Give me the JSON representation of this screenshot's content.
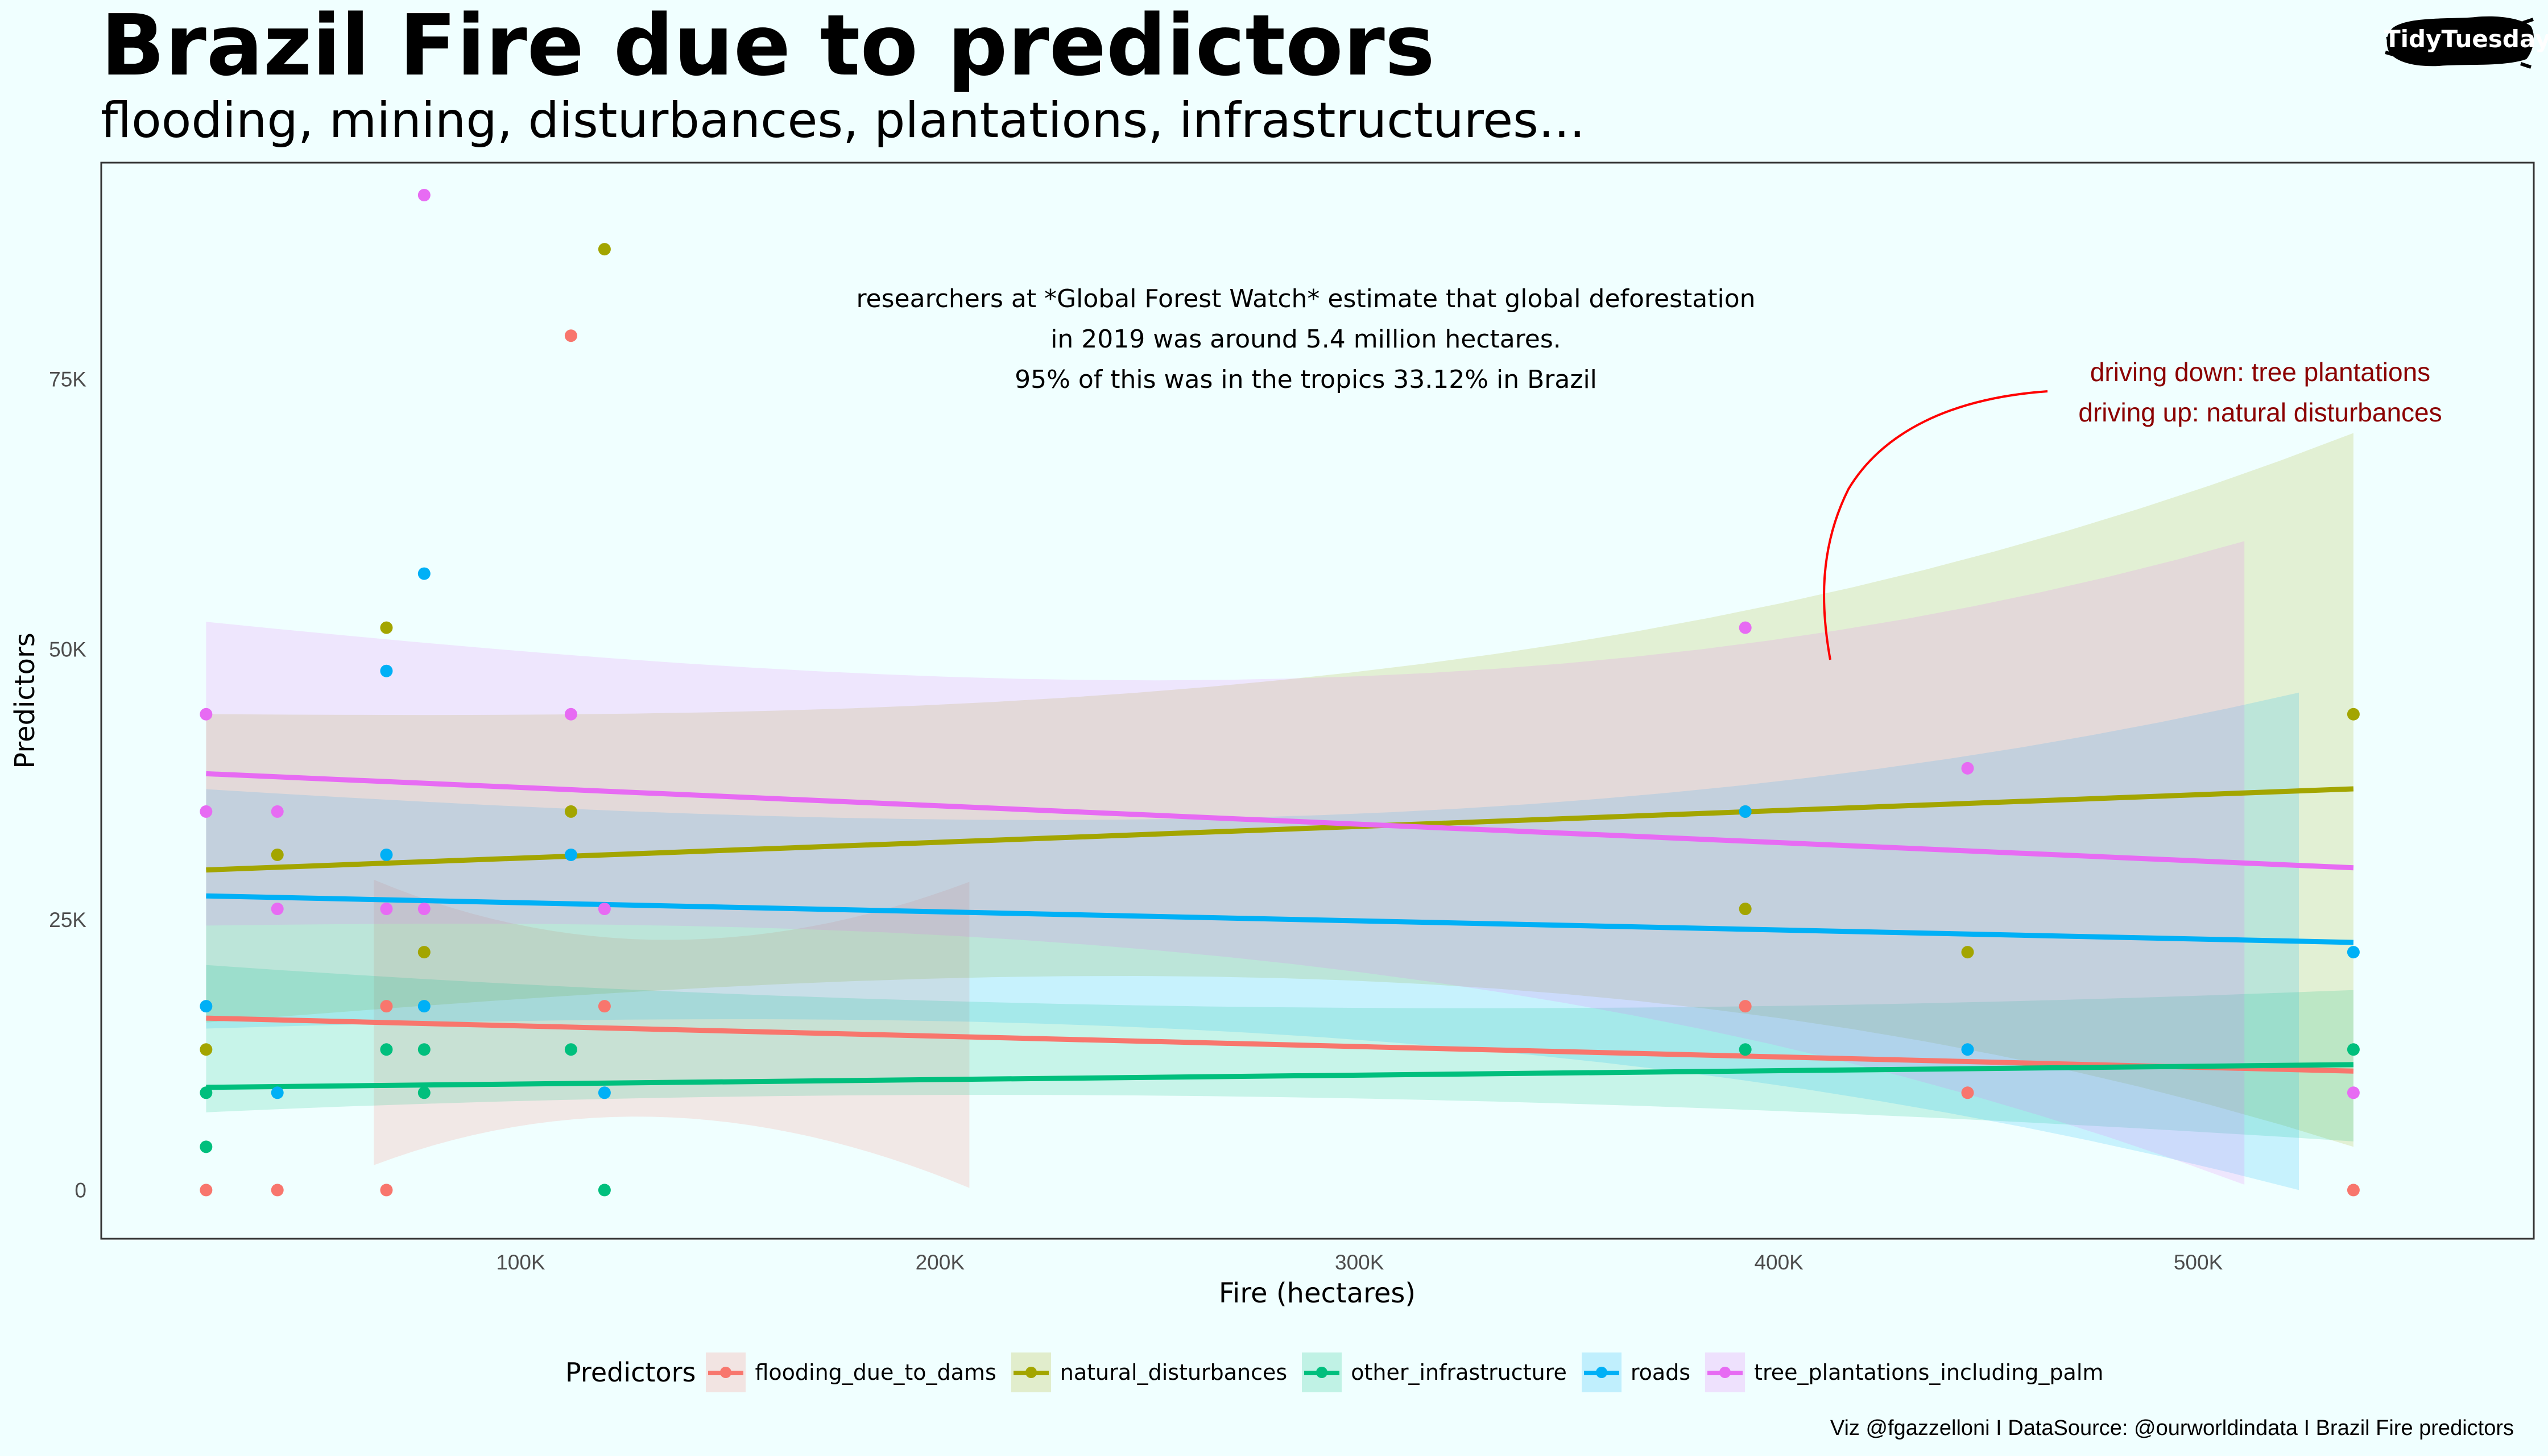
{
  "header": {
    "title": "Brazil Fire due to predictors",
    "subtitle": "flooding, mining, disturbances, plantations, infrastructures...",
    "badge": "TidyTuesday"
  },
  "caption": "Viz @fgazzelloni I DataSource: @ourworldindata I Brazil Fire predictors",
  "legend": {
    "title": "Predictors",
    "items": [
      {
        "label": "flooding_due_to_dams",
        "color": "#F8766D"
      },
      {
        "label": "natural_disturbances",
        "color": "#A3A500"
      },
      {
        "label": "other_infrastructure",
        "color": "#00BF7D"
      },
      {
        "label": "roads",
        "color": "#00B0F6"
      },
      {
        "label": "tree_plantations_including_palm",
        "color": "#E76BF3"
      }
    ]
  },
  "chart_data": {
    "type": "scatter",
    "title": "Brazil Fire due to predictors",
    "xlabel": "Fire (hectares)",
    "ylabel": "Predictors",
    "xlim": [
      0,
      580000
    ],
    "ylim": [
      -4500,
      95000
    ],
    "x_ticks": [
      100000,
      200000,
      300000,
      400000,
      500000
    ],
    "x_tick_labels": [
      "100K",
      "200K",
      "300K",
      "400K",
      "500K"
    ],
    "y_ticks": [
      0,
      25000,
      50000,
      75000
    ],
    "y_tick_labels": [
      "0",
      "25K",
      "50K",
      "75K"
    ],
    "annotation_main": [
      "researchers at *Global Forest Watch* estimate that global deforestation",
      "in 2019 was around 5.4 million hectares.",
      "95% of this was in the tropics 33.12% in Brazil"
    ],
    "annotation_side": [
      "driving down: tree plantations",
      "driving up: natural disturbances"
    ],
    "series": [
      {
        "name": "flooding_due_to_dams",
        "color": "#F8766D",
        "points": [
          [
            25000,
            0
          ],
          [
            42000,
            0
          ],
          [
            68000,
            0
          ],
          [
            68000,
            17000
          ],
          [
            112000,
            79000
          ],
          [
            120000,
            17000
          ],
          [
            392000,
            17000
          ],
          [
            445000,
            9000
          ],
          [
            537000,
            0
          ]
        ],
        "trend": [
          [
            25000,
            15900
          ],
          [
            537000,
            11000
          ]
        ],
        "band": {
          "x": [
            65000,
            207000
          ],
          "upper": [
            31000,
            28500
          ],
          "lower": [
            0,
            200
          ]
        }
      },
      {
        "name": "natural_disturbances",
        "color": "#A3A500",
        "points": [
          [
            25000,
            13000
          ],
          [
            42000,
            31000
          ],
          [
            68000,
            52000
          ],
          [
            77000,
            22000
          ],
          [
            112000,
            35000
          ],
          [
            120000,
            87000
          ],
          [
            392000,
            26000
          ],
          [
            392000,
            35000
          ],
          [
            445000,
            22000
          ],
          [
            537000,
            44000
          ]
        ],
        "trend": [
          [
            25000,
            29600
          ],
          [
            537000,
            37100
          ]
        ],
        "band": {
          "x": [
            25000,
            537000
          ],
          "upper": [
            46500,
            70000
          ],
          "lower": [
            13000,
            4000
          ]
        }
      },
      {
        "name": "other_infrastructure",
        "color": "#00BF7D",
        "points": [
          [
            25000,
            4000
          ],
          [
            25000,
            9000
          ],
          [
            68000,
            13000
          ],
          [
            77000,
            9000
          ],
          [
            77000,
            13000
          ],
          [
            112000,
            13000
          ],
          [
            120000,
            0
          ],
          [
            392000,
            13000
          ],
          [
            537000,
            13000
          ]
        ],
        "trend": [
          [
            25000,
            9500
          ],
          [
            537000,
            11600
          ]
        ],
        "band": {
          "x": [
            25000,
            537000
          ],
          "upper": [
            22000,
            18500
          ],
          "lower": [
            6000,
            4500
          ]
        }
      },
      {
        "name": "roads",
        "color": "#00B0F6",
        "points": [
          [
            25000,
            17000
          ],
          [
            42000,
            9000
          ],
          [
            68000,
            31000
          ],
          [
            68000,
            48000
          ],
          [
            77000,
            17000
          ],
          [
            77000,
            57000
          ],
          [
            112000,
            31000
          ],
          [
            120000,
            9000
          ],
          [
            392000,
            35000
          ],
          [
            445000,
            13000
          ],
          [
            537000,
            22000
          ]
        ],
        "trend": [
          [
            25000,
            27200
          ],
          [
            537000,
            22900
          ]
        ],
        "band": {
          "x": [
            25000,
            524000
          ],
          "upper": [
            39000,
            46000
          ],
          "lower": [
            13000,
            0
          ]
        }
      },
      {
        "name": "tree_plantations_including_palm",
        "color": "#E76BF3",
        "points": [
          [
            25000,
            35000
          ],
          [
            25000,
            44000
          ],
          [
            42000,
            26000
          ],
          [
            42000,
            35000
          ],
          [
            68000,
            26000
          ],
          [
            77000,
            26000
          ],
          [
            77000,
            92000
          ],
          [
            112000,
            44000
          ],
          [
            120000,
            26000
          ],
          [
            392000,
            52000
          ],
          [
            445000,
            39000
          ],
          [
            537000,
            9000
          ]
        ],
        "trend": [
          [
            25000,
            38500
          ],
          [
            537000,
            29800
          ]
        ],
        "band": {
          "x": [
            25000,
            511000
          ],
          "upper": [
            55000,
            60000
          ],
          "lower": [
            22000,
            500
          ]
        }
      }
    ]
  }
}
